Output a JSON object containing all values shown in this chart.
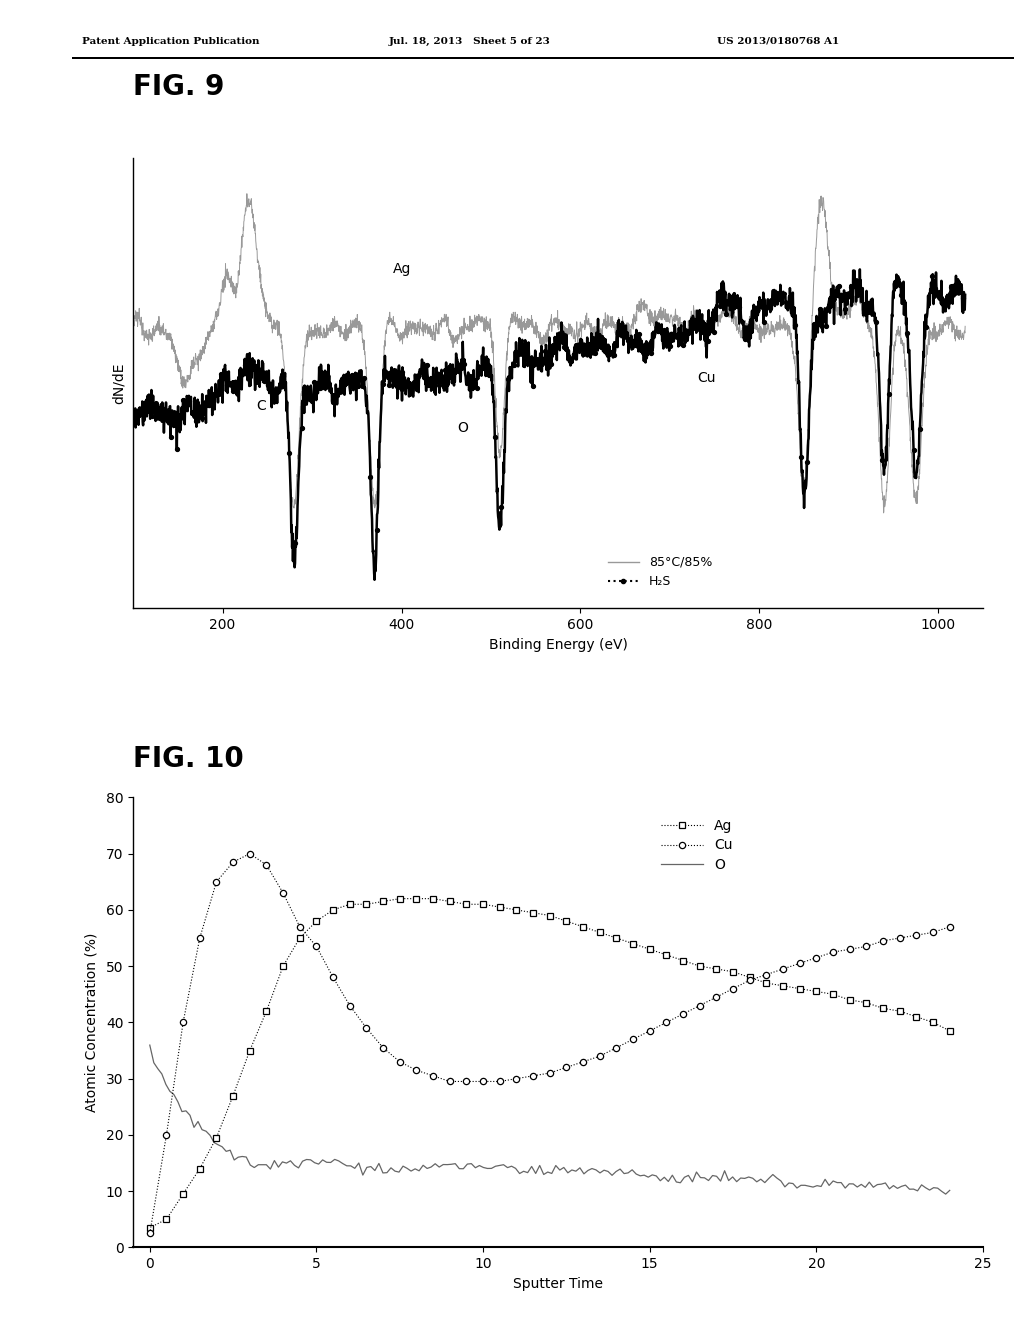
{
  "patent_line1": "Patent Application Publication",
  "patent_line2": "Jul. 18, 2013   Sheet 5 of 23",
  "patent_line3": "US 2013/0180768 A1",
  "fig9_title": "FIG. 9",
  "fig10_title": "FIG. 10",
  "fig9_xlabel": "Binding Energy (eV)",
  "fig9_ylabel": "dN/dE",
  "fig9_xlim": [
    100,
    1050
  ],
  "fig9_xticks": [
    200,
    400,
    600,
    800,
    1000
  ],
  "fig10_xlabel": "Sputter Time",
  "fig10_ylabel": "Atomic Concentration (%)",
  "fig10_xlim": [
    -0.5,
    25
  ],
  "fig10_ylim": [
    0,
    80
  ],
  "fig10_yticks": [
    0,
    10,
    20,
    30,
    40,
    50,
    60,
    70,
    80
  ],
  "fig10_xticks": [
    0,
    5,
    10,
    15,
    20,
    25
  ],
  "legend9_gray_label": "85°C/85%",
  "legend9_black_label": "H₂S",
  "legend10_entries": [
    "Ag",
    "Cu",
    "O"
  ],
  "bg_color": "#ffffff"
}
